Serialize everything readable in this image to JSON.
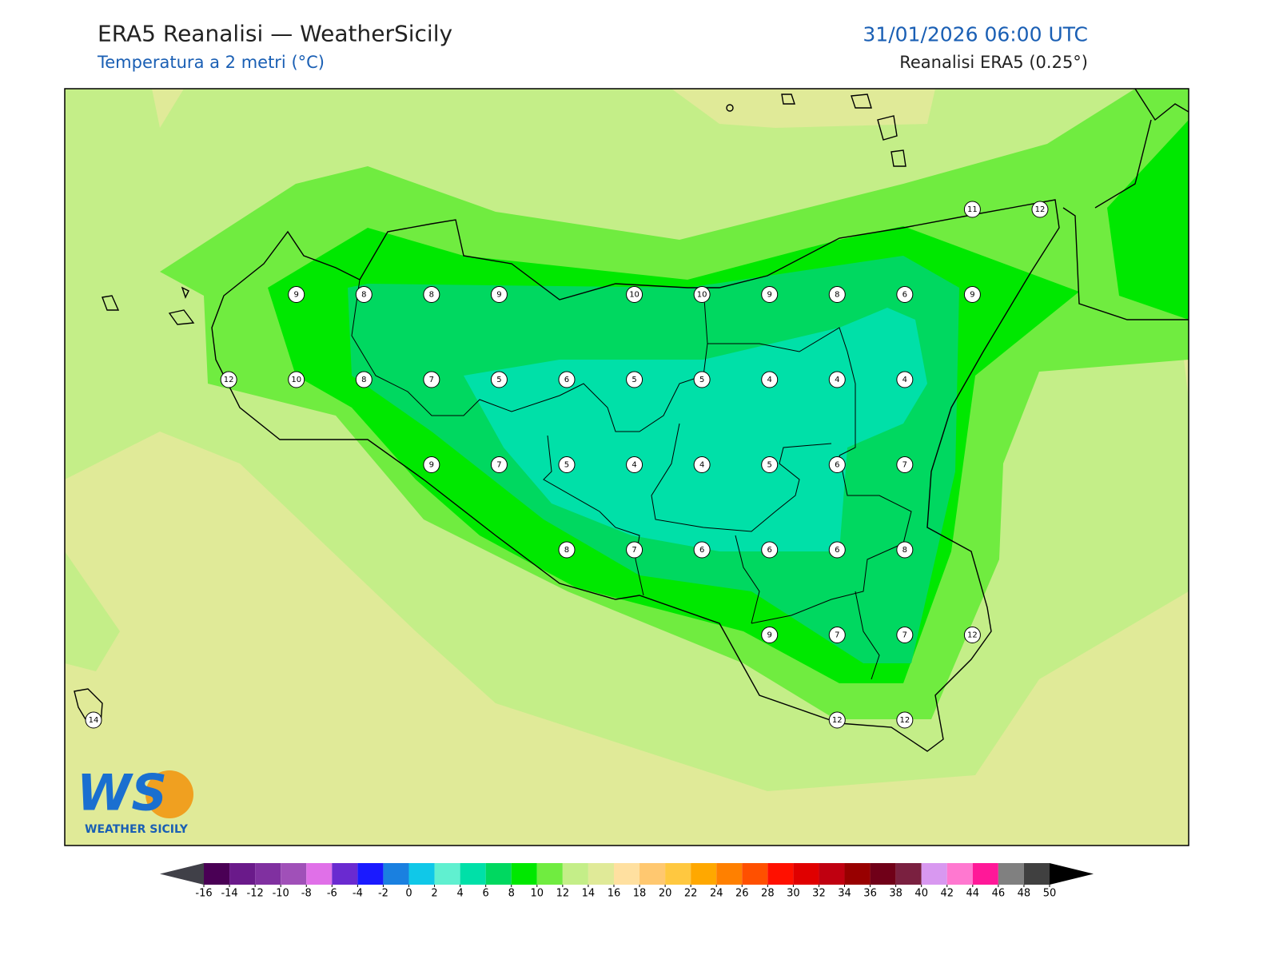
{
  "header": {
    "title": "ERA5 Reanalisi — WeatherSicily",
    "subtitle": "Temperatura a 2 metri (°C)",
    "datetime": "31/01/2026 06:00 UTC",
    "source": "Reanalisi ERA5 (0.25°)"
  },
  "logo": {
    "mark": "WS",
    "name": "WEATHER SICILY"
  },
  "station_grid": [
    [
      null,
      null,
      null,
      null,
      null,
      null,
      null,
      null,
      null,
      null,
      null,
      null,
      null,
      11,
      12
    ],
    [
      null,
      null,
      null,
      9,
      8,
      8,
      9,
      null,
      10,
      10,
      9,
      8,
      6,
      9,
      null
    ],
    [
      null,
      null,
      12,
      10,
      8,
      7,
      5,
      6,
      5,
      5,
      4,
      4,
      4,
      null,
      null
    ],
    [
      null,
      null,
      null,
      null,
      null,
      9,
      7,
      5,
      4,
      4,
      5,
      6,
      7,
      null,
      null
    ],
    [
      null,
      null,
      null,
      null,
      null,
      null,
      null,
      8,
      7,
      6,
      6,
      6,
      8,
      null,
      null
    ],
    [
      null,
      null,
      null,
      null,
      null,
      null,
      null,
      null,
      null,
      null,
      9,
      7,
      7,
      12,
      null
    ],
    [
      14,
      null,
      null,
      null,
      null,
      null,
      null,
      null,
      null,
      null,
      null,
      12,
      12,
      null,
      null
    ]
  ],
  "colorbar": {
    "ticks": [
      -16,
      -14,
      -12,
      -10,
      -8,
      -6,
      -4,
      -2,
      0,
      2,
      4,
      6,
      8,
      10,
      12,
      14,
      16,
      18,
      20,
      22,
      24,
      26,
      28,
      30,
      32,
      34,
      36,
      38,
      40,
      42,
      44,
      46,
      48,
      50
    ],
    "colors": [
      "#4a0055",
      "#6a1a8a",
      "#8030a0",
      "#a050b8",
      "#e070e8",
      "#6a2ad0",
      "#1a1aff",
      "#1a80e0",
      "#10c8e8",
      "#60f0d0",
      "#00e0a8",
      "#00d860",
      "#00e800",
      "#70ec40",
      "#c4ee88",
      "#e0ea98",
      "#ffe0a0",
      "#ffc870",
      "#ffc840",
      "#ffa800",
      "#ff8000",
      "#ff5000",
      "#ff1000",
      "#e00000",
      "#c00010",
      "#980000",
      "#700018",
      "#7a2040",
      "#d898f0",
      "#ff78d0",
      "#ff1898",
      "#808080",
      "#404040"
    ],
    "under_color": "#404048",
    "over_color": "#000000"
  }
}
